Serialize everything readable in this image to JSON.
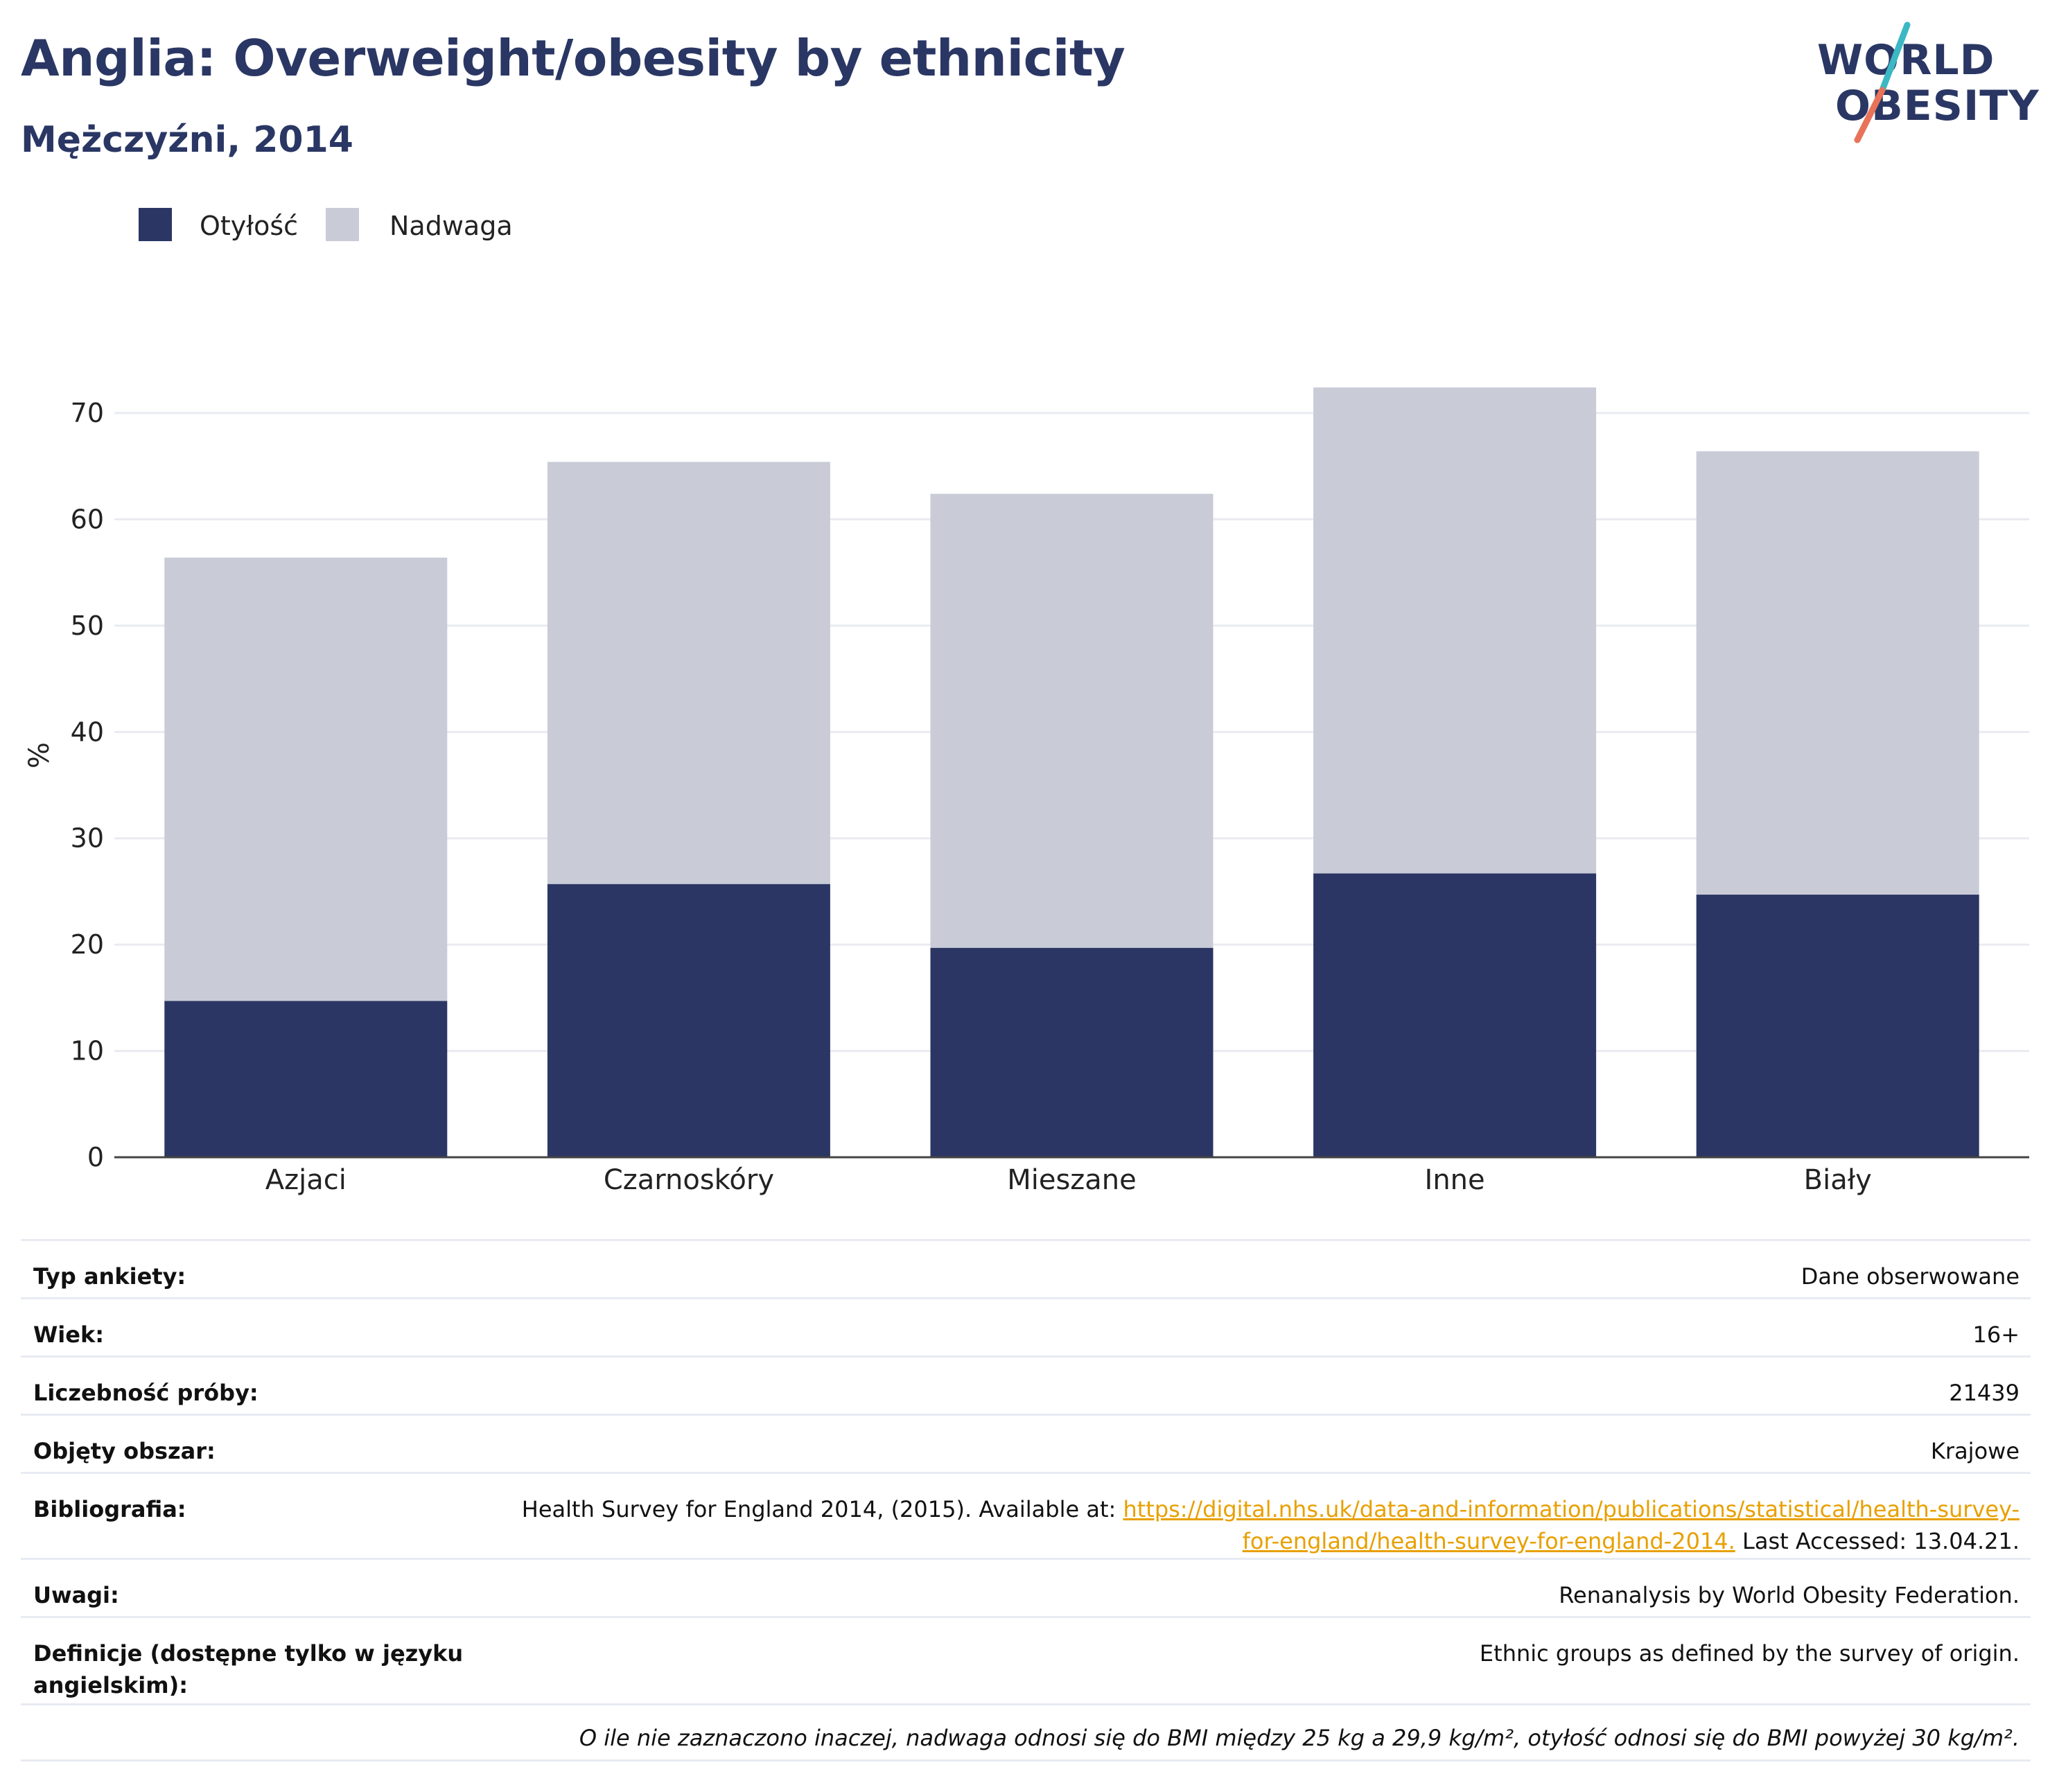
{
  "header": {
    "title": "Anglia: Overweight/obesity by ethnicity",
    "subtitle": "Mężczyźni, 2014",
    "logo_line1": "WORLD",
    "logo_line2": "OBESITY"
  },
  "colors": {
    "obesity": "#2b3664",
    "overweight": "#c9cbd7",
    "title": "#2a3764",
    "link": "#e8a000",
    "logo_slash_top": "#3bb8c4",
    "logo_slash_bottom": "#e8735a"
  },
  "chart_data": {
    "type": "bar",
    "stacked": true,
    "categories": [
      "Azjaci",
      "Czarnoskóry",
      "Mieszane",
      "Inne",
      "Biały"
    ],
    "series": [
      {
        "name": "Otyłość",
        "values": [
          14.7,
          25.7,
          19.7,
          26.7,
          24.7
        ],
        "color": "#2b3664"
      },
      {
        "name": "Nadwaga",
        "values": [
          41.7,
          39.7,
          42.7,
          45.7,
          41.7
        ],
        "color": "#c9cbd7"
      }
    ],
    "ylabel": "%",
    "xlabel": "",
    "ylim": [
      0,
      70
    ],
    "yticks": [
      0,
      10,
      20,
      30,
      40,
      50,
      60,
      70
    ],
    "grid": true,
    "legend_position": "top-left"
  },
  "meta": {
    "rows": [
      {
        "key": "Typ ankiety:",
        "value": "Dane obserwowane"
      },
      {
        "key": "Wiek:",
        "value": "16+"
      },
      {
        "key": "Liczebność próby:",
        "value": "21439"
      },
      {
        "key": "Objęty obszar:",
        "value": "Krajowe"
      }
    ],
    "bibliography": {
      "key": "Bibliografia:",
      "prefix": "Health Survey for England 2014, (2015). Available at: ",
      "link": "https://digital.nhs.uk/data-and-information/publications/statistical/health-survey-for-england/health-survey-for-england-2014.",
      "suffix": " Last Accessed: 13.04.21."
    },
    "notes": {
      "key": "Uwagi:",
      "value": "Renanalysis by World Obesity Federation."
    },
    "definitions": {
      "key": "Definicje (dostępne tylko w języku angielskim):",
      "value": "Ethnic groups as defined by the survey of origin."
    },
    "footnote": "O ile nie zaznaczono inaczej, nadwaga odnosi się do BMI między 25 kg a 29,9 kg/m², otyłość odnosi się do BMI powyżej 30 kg/m²."
  }
}
